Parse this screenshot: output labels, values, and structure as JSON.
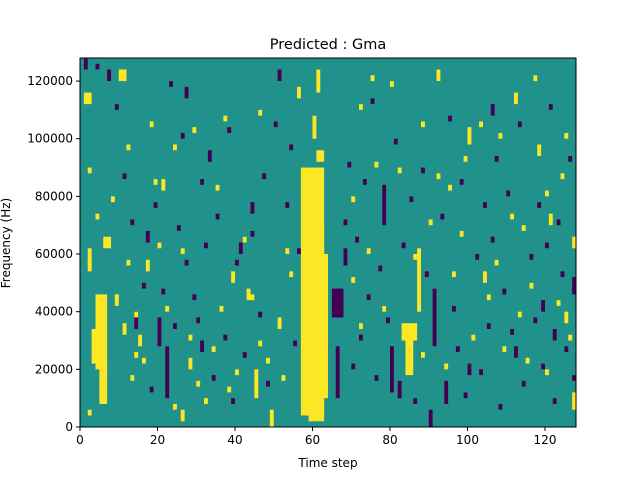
{
  "chart_data": {
    "type": "heatmap",
    "title": "Predicted : Gma",
    "xlabel": "Time step",
    "ylabel": "Frequency (Hz)",
    "xlim": [
      0,
      128
    ],
    "ylim": [
      0,
      128000
    ],
    "x_ticks": [
      0,
      20,
      40,
      60,
      80,
      100,
      120
    ],
    "x_tick_labels": [
      "0",
      "20",
      "40",
      "60",
      "80",
      "100",
      "120"
    ],
    "y_ticks": [
      0,
      20000,
      40000,
      60000,
      80000,
      100000,
      120000
    ],
    "y_tick_labels": [
      "0",
      "20000",
      "40000",
      "60000",
      "80000",
      "100000",
      "120000"
    ],
    "grid": false,
    "colormap": "viridis",
    "levels": {
      "low": -1,
      "mid": 0,
      "high": 1
    },
    "level_colors": {
      "low": "#440154",
      "mid": "#21918c",
      "high": "#fde725"
    },
    "frequency_bins": 128,
    "background_level": 0,
    "high_cells": [
      {
        "x0": 57,
        "x1": 63,
        "y0": 4000,
        "y1": 90000
      },
      {
        "x0": 59,
        "x1": 63,
        "y0": 2000,
        "y1": 70000
      },
      {
        "x0": 60,
        "x1": 64,
        "y0": 10000,
        "y1": 60000
      },
      {
        "x0": 61,
        "x1": 63,
        "y0": 92000,
        "y1": 96000
      },
      {
        "x0": 60,
        "x1": 61,
        "y0": 100000,
        "y1": 108000
      },
      {
        "x0": 61,
        "x1": 62,
        "y0": 116000,
        "y1": 124000
      },
      {
        "x0": 4,
        "x1": 7,
        "y0": 20000,
        "y1": 46000
      },
      {
        "x0": 5,
        "x1": 7,
        "y0": 8000,
        "y1": 22000
      },
      {
        "x0": 3,
        "x1": 4,
        "y0": 22000,
        "y1": 34000
      },
      {
        "x0": 6,
        "x1": 8,
        "y0": 62000,
        "y1": 66000
      },
      {
        "x0": 1,
        "x1": 3,
        "y0": 112000,
        "y1": 116000
      },
      {
        "x0": 10,
        "x1": 12,
        "y0": 120000,
        "y1": 124000
      },
      {
        "x0": 2,
        "x1": 3,
        "y0": 54000,
        "y1": 62000
      },
      {
        "x0": 2,
        "x1": 3,
        "y0": 4000,
        "y1": 6000
      },
      {
        "x0": 9,
        "x1": 10,
        "y0": 42000,
        "y1": 46000
      },
      {
        "x0": 11,
        "x1": 12,
        "y0": 32000,
        "y1": 36000
      },
      {
        "x0": 15,
        "x1": 16,
        "y0": 28000,
        "y1": 32000
      },
      {
        "x0": 17,
        "x1": 18,
        "y0": 54000,
        "y1": 58000
      },
      {
        "x0": 21,
        "x1": 22,
        "y0": 82000,
        "y1": 86000
      },
      {
        "x0": 26,
        "x1": 27,
        "y0": 2000,
        "y1": 6000
      },
      {
        "x0": 28,
        "x1": 29,
        "y0": 20000,
        "y1": 24000
      },
      {
        "x0": 39,
        "x1": 40,
        "y0": 50000,
        "y1": 54000
      },
      {
        "x0": 43,
        "x1": 44,
        "y0": 44000,
        "y1": 48000
      },
      {
        "x0": 45,
        "x1": 46,
        "y0": 10000,
        "y1": 20000
      },
      {
        "x0": 49,
        "x1": 50,
        "y0": 0,
        "y1": 6000
      },
      {
        "x0": 51,
        "x1": 52,
        "y0": 34000,
        "y1": 38000
      },
      {
        "x0": 56,
        "x1": 57,
        "y0": 114000,
        "y1": 118000
      },
      {
        "x0": 83,
        "x1": 87,
        "y0": 30000,
        "y1": 36000
      },
      {
        "x0": 84,
        "x1": 86,
        "y0": 18000,
        "y1": 30000
      },
      {
        "x0": 87,
        "x1": 88,
        "y0": 40000,
        "y1": 62000
      },
      {
        "x0": 92,
        "x1": 93,
        "y0": 120000,
        "y1": 124000
      },
      {
        "x0": 100,
        "x1": 101,
        "y0": 98000,
        "y1": 104000
      },
      {
        "x0": 104,
        "x1": 105,
        "y0": 50000,
        "y1": 54000
      },
      {
        "x0": 112,
        "x1": 113,
        "y0": 112000,
        "y1": 116000
      },
      {
        "x0": 118,
        "x1": 119,
        "y0": 94000,
        "y1": 98000
      },
      {
        "x0": 121,
        "x1": 122,
        "y0": 70000,
        "y1": 74000
      },
      {
        "x0": 125,
        "x1": 126,
        "y0": 36000,
        "y1": 40000
      },
      {
        "x0": 127,
        "x1": 128,
        "y0": 62000,
        "y1": 66000
      },
      {
        "x0": 127,
        "x1": 128,
        "y0": 6000,
        "y1": 12000
      }
    ],
    "low_cells": [
      {
        "x0": 65,
        "x1": 68,
        "y0": 38000,
        "y1": 48000
      },
      {
        "x0": 66,
        "x1": 67,
        "y0": 10000,
        "y1": 28000
      },
      {
        "x0": 68,
        "x1": 69,
        "y0": 56000,
        "y1": 62000
      },
      {
        "x0": 22,
        "x1": 23,
        "y0": 10000,
        "y1": 28000
      },
      {
        "x0": 20,
        "x1": 21,
        "y0": 28000,
        "y1": 38000
      },
      {
        "x0": 31,
        "x1": 32,
        "y0": 26000,
        "y1": 30000
      },
      {
        "x0": 41,
        "x1": 42,
        "y0": 60000,
        "y1": 64000
      },
      {
        "x0": 51,
        "x1": 52,
        "y0": 120000,
        "y1": 124000
      },
      {
        "x0": 80,
        "x1": 81,
        "y0": 12000,
        "y1": 28000
      },
      {
        "x0": 82,
        "x1": 83,
        "y0": 10000,
        "y1": 16000
      },
      {
        "x0": 91,
        "x1": 92,
        "y0": 28000,
        "y1": 48000
      },
      {
        "x0": 94,
        "x1": 95,
        "y0": 8000,
        "y1": 16000
      },
      {
        "x0": 90,
        "x1": 91,
        "y0": 0,
        "y1": 6000
      },
      {
        "x0": 78,
        "x1": 79,
        "y0": 70000,
        "y1": 84000
      },
      {
        "x0": 100,
        "x1": 101,
        "y0": 18000,
        "y1": 22000
      },
      {
        "x0": 106,
        "x1": 107,
        "y0": 108000,
        "y1": 112000
      },
      {
        "x0": 112,
        "x1": 113,
        "y0": 24000,
        "y1": 28000
      },
      {
        "x0": 119,
        "x1": 120,
        "y0": 40000,
        "y1": 44000
      },
      {
        "x0": 122,
        "x1": 123,
        "y0": 30000,
        "y1": 34000
      },
      {
        "x0": 127,
        "x1": 128,
        "y0": 46000,
        "y1": 52000
      },
      {
        "x0": 14,
        "x1": 15,
        "y0": 34000,
        "y1": 40000
      },
      {
        "x0": 17,
        "x1": 18,
        "y0": 64000,
        "y1": 68000
      },
      {
        "x0": 27,
        "x1": 28,
        "y0": 114000,
        "y1": 118000
      },
      {
        "x0": 33,
        "x1": 34,
        "y0": 92000,
        "y1": 96000
      },
      {
        "x0": 44,
        "x1": 45,
        "y0": 74000,
        "y1": 78000
      },
      {
        "x0": 1,
        "x1": 2,
        "y0": 124000,
        "y1": 128000
      },
      {
        "x0": 7,
        "x1": 8,
        "y0": 120000,
        "y1": 124000
      }
    ],
    "sparse_points": {
      "high": [
        [
          2,
          56000
        ],
        [
          9,
          44000
        ],
        [
          12,
          56000
        ],
        [
          13,
          16000
        ],
        [
          14,
          24000
        ],
        [
          14,
          38000
        ],
        [
          16,
          22000
        ],
        [
          18,
          104000
        ],
        [
          20,
          62000
        ],
        [
          22,
          40000
        ],
        [
          24,
          6000
        ],
        [
          26,
          60000
        ],
        [
          28,
          30000
        ],
        [
          30,
          14000
        ],
        [
          32,
          8000
        ],
        [
          34,
          26000
        ],
        [
          36,
          40000
        ],
        [
          38,
          12000
        ],
        [
          40,
          18000
        ],
        [
          42,
          64000
        ],
        [
          44,
          44000
        ],
        [
          46,
          28000
        ],
        [
          48,
          22000
        ],
        [
          52,
          16000
        ],
        [
          54,
          52000
        ],
        [
          70,
          50000
        ],
        [
          72,
          34000
        ],
        [
          74,
          60000
        ],
        [
          76,
          90000
        ],
        [
          78,
          40000
        ],
        [
          80,
          118000
        ],
        [
          86,
          58000
        ],
        [
          88,
          24000
        ],
        [
          90,
          70000
        ],
        [
          92,
          86000
        ],
        [
          94,
          20000
        ],
        [
          96,
          52000
        ],
        [
          98,
          66000
        ],
        [
          101,
          30000
        ],
        [
          103,
          104000
        ],
        [
          105,
          44000
        ],
        [
          107,
          56000
        ],
        [
          109,
          26000
        ],
        [
          111,
          72000
        ],
        [
          113,
          38000
        ],
        [
          115,
          22000
        ],
        [
          116,
          48000
        ],
        [
          117,
          120000
        ],
        [
          120,
          18000
        ],
        [
          123,
          42000
        ],
        [
          124,
          86000
        ],
        [
          126,
          30000
        ],
        [
          2,
          88000
        ],
        [
          4,
          72000
        ],
        [
          8,
          78000
        ],
        [
          12,
          96000
        ],
        [
          19,
          84000
        ],
        [
          24,
          96000
        ],
        [
          29,
          102000
        ],
        [
          35,
          82000
        ],
        [
          37,
          106000
        ],
        [
          46,
          108000
        ],
        [
          53,
          60000
        ],
        [
          70,
          78000
        ],
        [
          72,
          110000
        ],
        [
          75,
          120000
        ],
        [
          82,
          88000
        ],
        [
          88,
          104000
        ],
        [
          95,
          82000
        ],
        [
          99,
          92000
        ],
        [
          108,
          100000
        ],
        [
          114,
          68000
        ],
        [
          120,
          80000
        ],
        [
          125,
          100000
        ]
      ],
      "low": [
        [
          4,
          124000
        ],
        [
          9,
          110000
        ],
        [
          11,
          86000
        ],
        [
          13,
          70000
        ],
        [
          16,
          48000
        ],
        [
          18,
          12000
        ],
        [
          19,
          76000
        ],
        [
          21,
          46000
        ],
        [
          23,
          118000
        ],
        [
          24,
          34000
        ],
        [
          25,
          68000
        ],
        [
          26,
          100000
        ],
        [
          27,
          56000
        ],
        [
          29,
          44000
        ],
        [
          30,
          36000
        ],
        [
          31,
          84000
        ],
        [
          32,
          62000
        ],
        [
          34,
          16000
        ],
        [
          35,
          72000
        ],
        [
          37,
          30000
        ],
        [
          38,
          102000
        ],
        [
          39,
          8000
        ],
        [
          40,
          56000
        ],
        [
          42,
          24000
        ],
        [
          44,
          66000
        ],
        [
          46,
          38000
        ],
        [
          47,
          86000
        ],
        [
          48,
          14000
        ],
        [
          50,
          104000
        ],
        [
          53,
          76000
        ],
        [
          54,
          96000
        ],
        [
          55,
          28000
        ],
        [
          56,
          60000
        ],
        [
          68,
          70000
        ],
        [
          69,
          90000
        ],
        [
          70,
          20000
        ],
        [
          71,
          64000
        ],
        [
          72,
          30000
        ],
        [
          73,
          84000
        ],
        [
          74,
          44000
        ],
        [
          75,
          112000
        ],
        [
          76,
          16000
        ],
        [
          77,
          54000
        ],
        [
          79,
          36000
        ],
        [
          81,
          98000
        ],
        [
          83,
          62000
        ],
        [
          85,
          78000
        ],
        [
          86,
          8000
        ],
        [
          88,
          88000
        ],
        [
          89,
          52000
        ],
        [
          93,
          72000
        ],
        [
          95,
          106000
        ],
        [
          96,
          40000
        ],
        [
          97,
          26000
        ],
        [
          98,
          84000
        ],
        [
          99,
          10000
        ],
        [
          102,
          58000
        ],
        [
          103,
          18000
        ],
        [
          104,
          76000
        ],
        [
          105,
          34000
        ],
        [
          106,
          64000
        ],
        [
          107,
          92000
        ],
        [
          108,
          6000
        ],
        [
          109,
          46000
        ],
        [
          110,
          80000
        ],
        [
          111,
          32000
        ],
        [
          113,
          104000
        ],
        [
          114,
          14000
        ],
        [
          116,
          58000
        ],
        [
          117,
          36000
        ],
        [
          118,
          76000
        ],
        [
          119,
          20000
        ],
        [
          120,
          62000
        ],
        [
          121,
          110000
        ],
        [
          122,
          8000
        ],
        [
          123,
          70000
        ],
        [
          124,
          52000
        ],
        [
          125,
          26000
        ],
        [
          126,
          92000
        ],
        [
          127,
          16000
        ]
      ]
    }
  }
}
